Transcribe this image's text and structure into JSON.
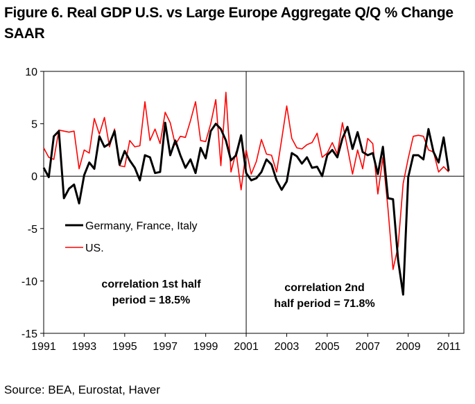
{
  "title": {
    "line1": "Figure 6. Real GDP U.S. vs Large Europe Aggregate Q/Q % Change",
    "line2": "SAAR"
  },
  "source": "Source: BEA, Eurostat, Haver",
  "chart_data": {
    "type": "line",
    "xlim": [
      1991,
      2011.75
    ],
    "ylim": [
      -15,
      10
    ],
    "y_ticks": [
      10,
      5,
      0,
      -5,
      -10,
      -15
    ],
    "y_tick_labels": [
      "10",
      "5",
      "0",
      "-5",
      "-10",
      "-15"
    ],
    "x_ticks": [
      1991,
      1993,
      1995,
      1997,
      1999,
      2001,
      2003,
      2005,
      2007,
      2009,
      2011
    ],
    "x_tick_labels": [
      "1991",
      "1993",
      "1995",
      "1997",
      "1999",
      "2001",
      "2003",
      "2005",
      "2007",
      "2009",
      "2011"
    ],
    "divider_x": 2001,
    "grid": false,
    "legend_position": "middle-left",
    "series": [
      {
        "name": "Germany, France, Italy",
        "color": "#000000",
        "x": [
          1991.0,
          1991.25,
          1991.5,
          1991.75,
          1992.0,
          1992.25,
          1992.5,
          1992.75,
          1993.0,
          1993.25,
          1993.5,
          1993.75,
          1994.0,
          1994.25,
          1994.5,
          1994.75,
          1995.0,
          1995.25,
          1995.5,
          1995.75,
          1996.0,
          1996.25,
          1996.5,
          1996.75,
          1997.0,
          1997.25,
          1997.5,
          1997.75,
          1998.0,
          1998.25,
          1998.5,
          1998.75,
          1999.0,
          1999.25,
          1999.5,
          1999.75,
          2000.0,
          2000.25,
          2000.5,
          2000.75,
          2001.0,
          2001.25,
          2001.5,
          2001.75,
          2002.0,
          2002.25,
          2002.5,
          2002.75,
          2003.0,
          2003.25,
          2003.5,
          2003.75,
          2004.0,
          2004.25,
          2004.5,
          2004.75,
          2005.0,
          2005.25,
          2005.5,
          2005.75,
          2006.0,
          2006.25,
          2006.5,
          2006.75,
          2007.0,
          2007.25,
          2007.5,
          2007.75,
          2008.0,
          2008.25,
          2008.5,
          2008.75,
          2009.0,
          2009.25,
          2009.5,
          2009.75,
          2010.0,
          2010.25,
          2010.5,
          2010.75,
          2011.0
        ],
        "values": [
          0.8,
          -0.1,
          3.8,
          4.3,
          -2.1,
          -1.2,
          -0.8,
          -2.6,
          0.1,
          1.3,
          0.7,
          3.8,
          2.8,
          3.1,
          4.3,
          1.1,
          2.4,
          1.5,
          0.8,
          -0.4,
          2.0,
          1.8,
          0.3,
          0.4,
          5.1,
          2.0,
          3.4,
          2.0,
          0.8,
          1.6,
          0.3,
          2.7,
          1.7,
          4.3,
          5.0,
          4.5,
          3.4,
          1.5,
          2.0,
          3.9,
          0.3,
          -0.4,
          -0.2,
          0.4,
          1.6,
          1.1,
          -0.4,
          -1.3,
          -0.5,
          2.2,
          1.9,
          1.2,
          1.8,
          0.8,
          0.9,
          0.0,
          2.0,
          2.5,
          1.8,
          3.6,
          4.7,
          2.6,
          4.2,
          2.3,
          2.0,
          2.2,
          0.2,
          2.8,
          -2.1,
          -2.2,
          -8.0,
          -11.3,
          -0.1,
          2.0,
          2.0,
          1.6,
          4.5,
          2.3,
          1.3,
          3.7,
          0.5
        ]
      },
      {
        "name": "US.",
        "color": "#ff0000",
        "x": [
          1991.0,
          1991.25,
          1991.5,
          1991.75,
          1992.0,
          1992.25,
          1992.5,
          1992.75,
          1993.0,
          1993.25,
          1993.5,
          1993.75,
          1994.0,
          1994.25,
          1994.5,
          1994.75,
          1995.0,
          1995.25,
          1995.5,
          1995.75,
          1996.0,
          1996.25,
          1996.5,
          1996.75,
          1997.0,
          1997.25,
          1997.5,
          1997.75,
          1998.0,
          1998.25,
          1998.5,
          1998.75,
          1999.0,
          1999.25,
          1999.5,
          1999.75,
          2000.0,
          2000.25,
          2000.5,
          2000.75,
          2001.0,
          2001.25,
          2001.5,
          2001.75,
          2002.0,
          2002.25,
          2002.5,
          2002.75,
          2003.0,
          2003.25,
          2003.5,
          2003.75,
          2004.0,
          2004.25,
          2004.5,
          2004.75,
          2005.0,
          2005.25,
          2005.5,
          2005.75,
          2006.0,
          2006.25,
          2006.5,
          2006.75,
          2007.0,
          2007.25,
          2007.5,
          2007.75,
          2008.0,
          2008.25,
          2008.5,
          2008.75,
          2009.0,
          2009.25,
          2009.5,
          2009.75,
          2010.0,
          2010.25,
          2010.5,
          2010.75,
          2011.0
        ],
        "values": [
          2.7,
          1.8,
          1.6,
          4.4,
          4.3,
          4.2,
          4.3,
          0.7,
          2.5,
          2.2,
          5.5,
          4.0,
          5.6,
          2.8,
          4.5,
          1.0,
          0.9,
          3.4,
          2.8,
          2.9,
          7.1,
          3.4,
          4.5,
          3.1,
          6.1,
          5.1,
          3.0,
          3.8,
          3.7,
          5.3,
          7.1,
          3.4,
          3.3,
          5.0,
          7.3,
          1.0,
          8.0,
          0.4,
          2.3,
          -1.3,
          2.5,
          0.2,
          1.4,
          3.5,
          2.1,
          2.0,
          0.4,
          3.5,
          6.7,
          3.6,
          2.7,
          2.6,
          3.0,
          3.2,
          4.1,
          1.8,
          2.2,
          3.2,
          2.1,
          5.1,
          2.7,
          0.2,
          2.5,
          0.7,
          3.6,
          3.1,
          -1.7,
          1.8,
          -3.1,
          -8.9,
          -6.7,
          -0.7,
          1.7,
          3.8,
          3.9,
          3.8,
          2.5,
          2.3,
          0.4,
          0.9,
          0.4
        ]
      }
    ],
    "annotations": [
      {
        "lines": [
          "correlation 1st half",
          "period = 18.5%"
        ],
        "x": 1995.8,
        "y": -10.8
      },
      {
        "lines": [
          "correlation 2nd",
          "half period = 71.8%"
        ],
        "x": 2005.5,
        "y": -11.5
      }
    ]
  }
}
